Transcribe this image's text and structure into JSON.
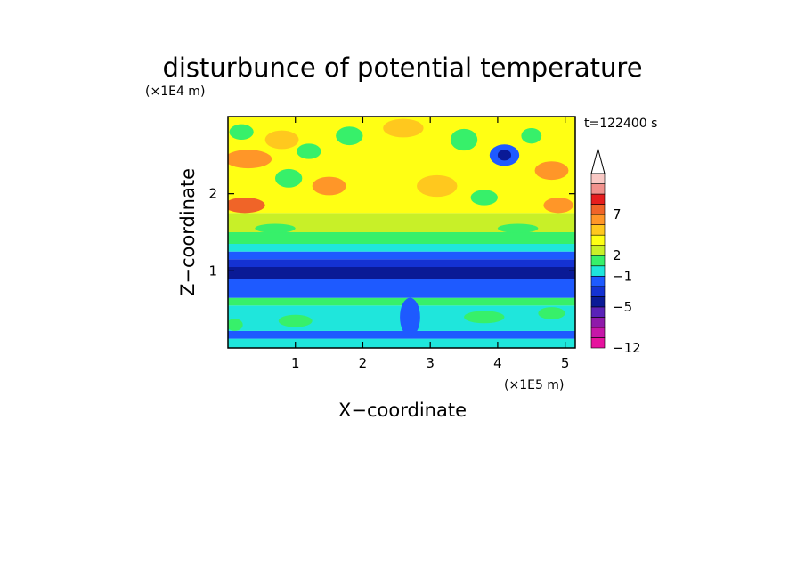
{
  "chart_data": {
    "type": "heatmap",
    "title": "disturbunce of potential temperature",
    "xlabel": "X−coordinate",
    "ylabel": "Z−coordinate",
    "x_scale_label": "(×1E5 m)",
    "y_scale_label": "(×1E4 m)",
    "time_label": "t=122400 s",
    "xlim": [
      0,
      5.15
    ],
    "ylim": [
      0,
      3.0
    ],
    "x_ticks": [
      {
        "value": 1,
        "label": "1"
      },
      {
        "value": 2,
        "label": "2"
      },
      {
        "value": 3,
        "label": "3"
      },
      {
        "value": 4,
        "label": "4"
      },
      {
        "value": 5,
        "label": "5"
      }
    ],
    "y_ticks": [
      {
        "value": 1,
        "label": "1"
      },
      {
        "value": 2,
        "label": "2"
      }
    ],
    "colorbar": {
      "levels": [
        {
          "color": "#e6139e"
        },
        {
          "color": "#c617a8"
        },
        {
          "color": "#8f1aaa"
        },
        {
          "color": "#5a22b8"
        },
        {
          "color": "#0a1a96"
        },
        {
          "color": "#1432d2"
        },
        {
          "color": "#1e5aff"
        },
        {
          "color": "#1fe6dc"
        },
        {
          "color": "#37f06a"
        },
        {
          "color": "#c8f028"
        },
        {
          "color": "#ffff14"
        },
        {
          "color": "#ffc81e"
        },
        {
          "color": "#ff9628"
        },
        {
          "color": "#f06428"
        },
        {
          "color": "#e61e1e"
        },
        {
          "color": "#f0918c"
        },
        {
          "color": "#f8c8c4"
        }
      ],
      "labels": [
        {
          "label": "−12",
          "index": 0
        },
        {
          "label": "−5",
          "index": 4
        },
        {
          "label": "−1",
          "index": 7
        },
        {
          "label": "2",
          "index": 9
        },
        {
          "label": "7",
          "index": 13
        }
      ]
    },
    "bands": [
      {
        "z_from": 0.0,
        "z_to": 0.12,
        "color": "#1fe6dc"
      },
      {
        "z_from": 0.12,
        "z_to": 0.22,
        "color": "#1e5aff"
      },
      {
        "z_from": 0.22,
        "z_to": 0.55,
        "color": "#1fe6dc"
      },
      {
        "z_from": 0.55,
        "z_to": 0.65,
        "color": "#37f06a"
      },
      {
        "z_from": 0.65,
        "z_to": 0.9,
        "color": "#1e5aff"
      },
      {
        "z_from": 0.9,
        "z_to": 1.05,
        "color": "#0a1a96"
      },
      {
        "z_from": 1.05,
        "z_to": 1.15,
        "color": "#1432d2"
      },
      {
        "z_from": 1.15,
        "z_to": 1.25,
        "color": "#1e5aff"
      },
      {
        "z_from": 1.25,
        "z_to": 1.35,
        "color": "#1fe6dc"
      },
      {
        "z_from": 1.35,
        "z_to": 1.5,
        "color": "#37f06a"
      },
      {
        "z_from": 1.5,
        "z_to": 1.75,
        "color": "#c8f028"
      },
      {
        "z_from": 1.75,
        "z_to": 3.0,
        "color": "#ffff14"
      }
    ],
    "blobs": [
      {
        "x": 0.3,
        "z": 2.45,
        "rx": 0.35,
        "rz": 0.12,
        "color": "#ff9628"
      },
      {
        "x": 0.25,
        "z": 1.85,
        "rx": 0.3,
        "rz": 0.1,
        "color": "#f06428"
      },
      {
        "x": 0.8,
        "z": 2.7,
        "rx": 0.25,
        "rz": 0.12,
        "color": "#ffc81e"
      },
      {
        "x": 0.9,
        "z": 2.2,
        "rx": 0.2,
        "rz": 0.12,
        "color": "#37f06a"
      },
      {
        "x": 0.2,
        "z": 2.8,
        "rx": 0.18,
        "rz": 0.1,
        "color": "#37f06a"
      },
      {
        "x": 1.5,
        "z": 2.1,
        "rx": 0.25,
        "rz": 0.12,
        "color": "#ff9628"
      },
      {
        "x": 1.2,
        "z": 2.55,
        "rx": 0.18,
        "rz": 0.1,
        "color": "#37f06a"
      },
      {
        "x": 1.8,
        "z": 2.75,
        "rx": 0.2,
        "rz": 0.12,
        "color": "#37f06a"
      },
      {
        "x": 2.6,
        "z": 2.85,
        "rx": 0.3,
        "rz": 0.12,
        "color": "#ffc81e"
      },
      {
        "x": 3.1,
        "z": 2.1,
        "rx": 0.3,
        "rz": 0.14,
        "color": "#ffc81e"
      },
      {
        "x": 3.5,
        "z": 2.7,
        "rx": 0.2,
        "rz": 0.14,
        "color": "#37f06a"
      },
      {
        "x": 4.1,
        "z": 2.5,
        "rx": 0.22,
        "rz": 0.14,
        "color": "#1e5aff"
      },
      {
        "x": 4.1,
        "z": 2.5,
        "rx": 0.1,
        "rz": 0.07,
        "color": "#0a1a96"
      },
      {
        "x": 4.5,
        "z": 2.75,
        "rx": 0.15,
        "rz": 0.1,
        "color": "#37f06a"
      },
      {
        "x": 4.8,
        "z": 2.3,
        "rx": 0.25,
        "rz": 0.12,
        "color": "#ff9628"
      },
      {
        "x": 4.9,
        "z": 1.85,
        "rx": 0.22,
        "rz": 0.1,
        "color": "#ff9628"
      },
      {
        "x": 3.8,
        "z": 1.95,
        "rx": 0.2,
        "rz": 0.1,
        "color": "#37f06a"
      },
      {
        "x": 0.7,
        "z": 1.55,
        "rx": 0.3,
        "rz": 0.06,
        "color": "#37f06a"
      },
      {
        "x": 4.3,
        "z": 1.55,
        "rx": 0.3,
        "rz": 0.06,
        "color": "#37f06a"
      },
      {
        "x": 2.7,
        "z": 0.4,
        "rx": 0.15,
        "rz": 0.25,
        "color": "#1e5aff"
      },
      {
        "x": 1.0,
        "z": 0.35,
        "rx": 0.25,
        "rz": 0.08,
        "color": "#37f06a"
      },
      {
        "x": 3.8,
        "z": 0.4,
        "rx": 0.3,
        "rz": 0.08,
        "color": "#37f06a"
      },
      {
        "x": 4.8,
        "z": 0.45,
        "rx": 0.2,
        "rz": 0.08,
        "color": "#37f06a"
      },
      {
        "x": 0.1,
        "z": 0.3,
        "rx": 0.12,
        "rz": 0.08,
        "color": "#37f06a"
      }
    ]
  }
}
